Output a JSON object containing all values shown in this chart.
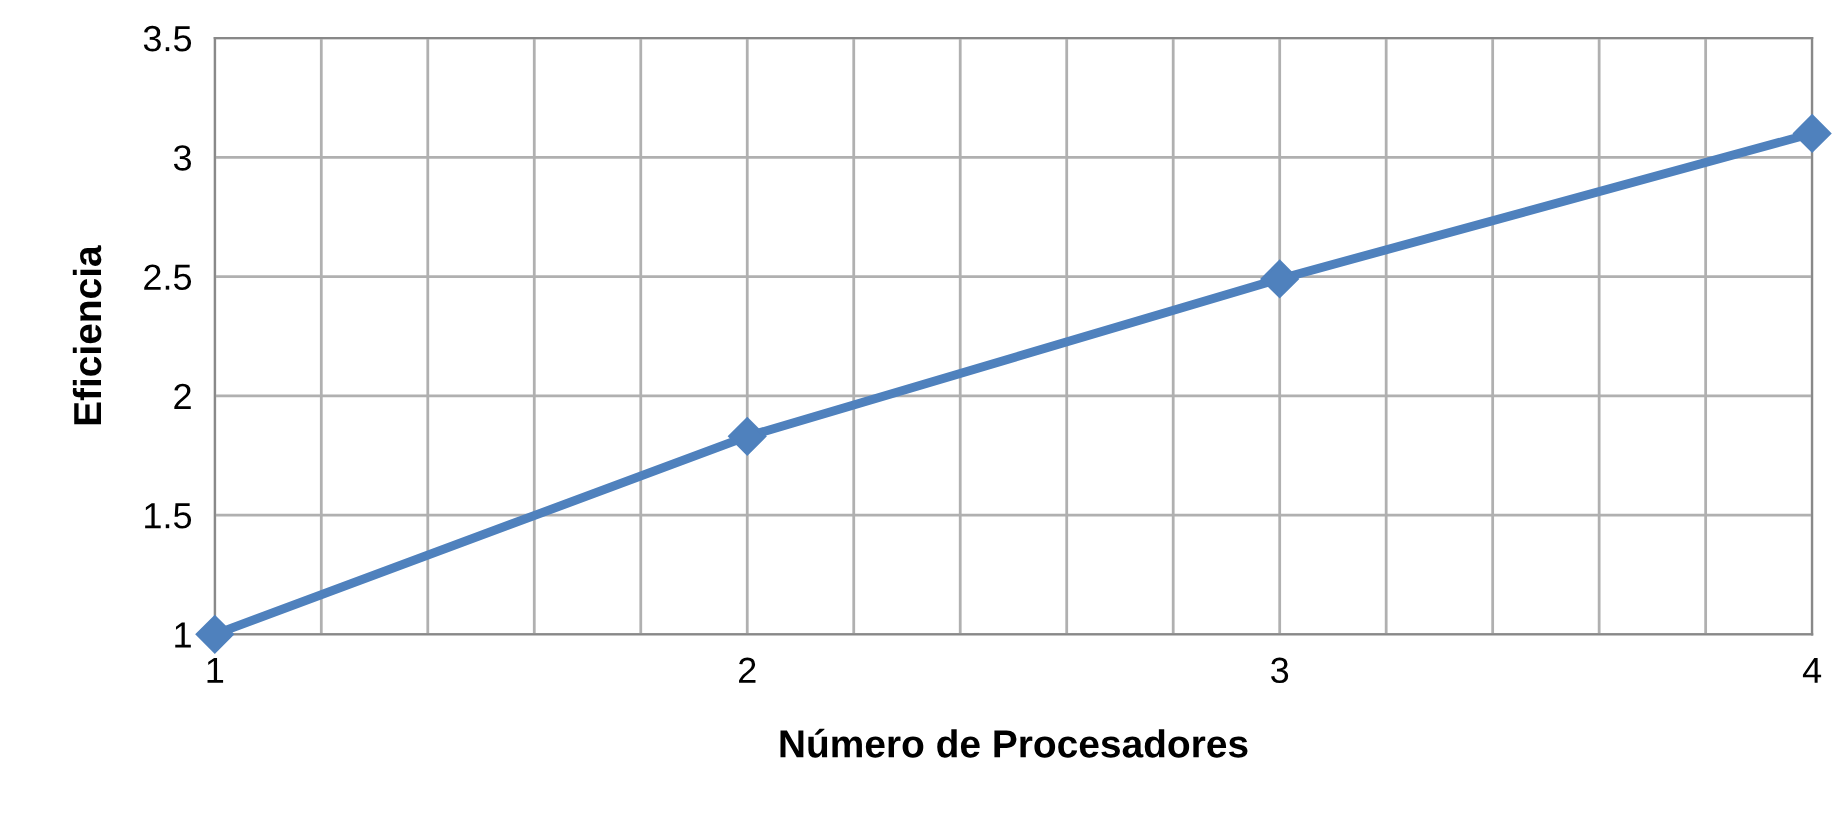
{
  "chart_data": {
    "type": "line",
    "xlabel": "Número de Procesadores",
    "ylabel": "Eficiencia",
    "x": [
      1,
      2,
      3,
      4
    ],
    "series": [
      {
        "color": "#4f81bd",
        "values": [
          1,
          1.83,
          2.49,
          3.1
        ]
      }
    ],
    "xlim": [
      1,
      4
    ],
    "xticks": [
      1,
      {
        "value": 1.2,
        "label": null
      },
      {
        "value": 1.4,
        "label": null
      },
      {
        "value": 1.6,
        "label": null
      },
      {
        "value": 1.8,
        "label": null
      },
      2,
      {
        "value": 2.2,
        "label": null
      },
      {
        "value": 2.4,
        "label": null
      },
      {
        "value": 2.6,
        "label": null
      },
      {
        "value": 2.8,
        "label": null
      },
      3,
      {
        "value": 3.2,
        "label": null
      },
      {
        "value": 3.4,
        "label": null
      },
      {
        "value": 3.6,
        "label": null
      },
      {
        "value": 3.8,
        "label": null
      },
      4
    ],
    "ylim": [
      1,
      3.5
    ],
    "yticks": [
      1,
      1.5,
      2,
      2.5,
      3,
      3.5
    ],
    "grid": true,
    "marker": "diamond",
    "line_style": "solid",
    "legend": false
  }
}
